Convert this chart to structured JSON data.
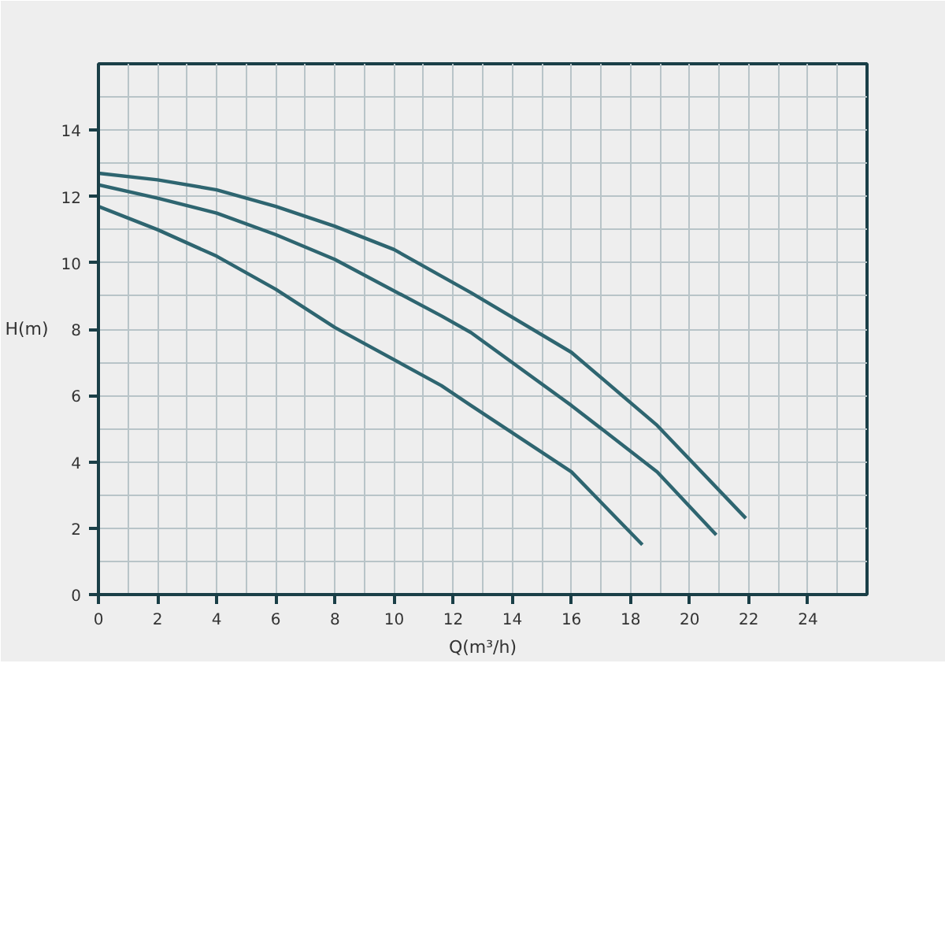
{
  "chart_data": {
    "type": "line",
    "xlabel": "Q(m³/h)",
    "ylabel": "H(m)",
    "xlim": [
      0,
      26
    ],
    "ylim": [
      0,
      16
    ],
    "xticks": [
      0,
      2,
      4,
      6,
      8,
      10,
      12,
      14,
      16,
      18,
      20,
      22,
      24
    ],
    "yticks": [
      0,
      2,
      4,
      6,
      8,
      10,
      12,
      14
    ],
    "grid": true,
    "marker": "none",
    "line_style": "solid",
    "series": [
      {
        "color": "#2e6570",
        "x": [
          0,
          2,
          4,
          6,
          8,
          10,
          11.6,
          12.6,
          16,
          18.9,
          21.9
        ],
        "values": [
          12.7,
          12.5,
          12.2,
          11.7,
          11.1,
          10.4,
          9.6,
          9.1,
          7.3,
          5.1,
          2.3
        ]
      },
      {
        "color": "#2e6570",
        "x": [
          0,
          2,
          4,
          6,
          8,
          11.6,
          12.6,
          16,
          18.9,
          20.9
        ],
        "values": [
          12.35,
          11.95,
          11.5,
          10.85,
          10.1,
          8.4,
          7.9,
          5.7,
          3.7,
          1.8
        ]
      },
      {
        "color": "#2e6570",
        "x": [
          0,
          2,
          4,
          6,
          8,
          11.6,
          12.6,
          16,
          18.4
        ],
        "values": [
          11.7,
          11.0,
          10.2,
          9.2,
          8.05,
          6.3,
          5.7,
          3.7,
          1.5
        ]
      }
    ]
  }
}
